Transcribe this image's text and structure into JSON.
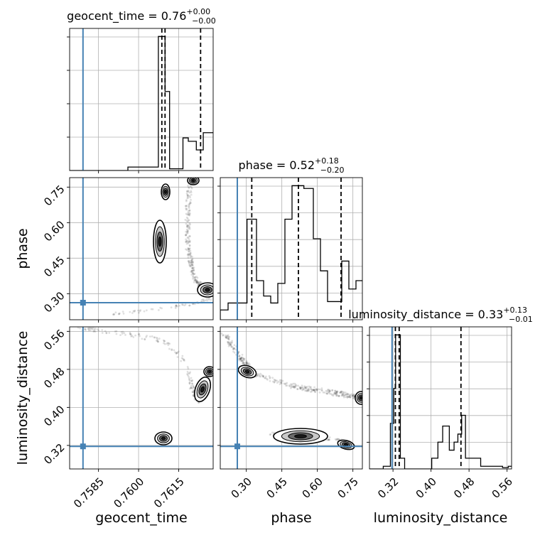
{
  "chart_data": {
    "type": "corner",
    "parameters": [
      "geocent_time",
      "phase",
      "luminosity_distance"
    ],
    "axis_labels": [
      "geocent_time",
      "phase",
      "luminosity_distance"
    ],
    "titles": [
      {
        "param": "geocent_time",
        "prefix": "geocent_time = 0.76",
        "sup": "+0.00",
        "sub": "−0.00"
      },
      {
        "param": "phase",
        "prefix": "phase = 0.52",
        "sup": "+0.18",
        "sub": "−0.20"
      },
      {
        "param": "luminosity_distance",
        "prefix": "luminosity_distance = 0.33",
        "sup": "+0.13",
        "sub": "−0.01"
      }
    ],
    "ranges": {
      "geocent_time": [
        0.75742,
        0.76279
      ],
      "phase": [
        0.19,
        0.79
      ],
      "luminosity_distance": [
        0.2705,
        0.5695
      ]
    },
    "ticks": {
      "geocent_time": [
        "0.7585",
        "0.7600",
        "0.7615"
      ],
      "phase": [
        "0.30",
        "0.45",
        "0.60",
        "0.75"
      ],
      "luminosity_distance": [
        "0.32",
        "0.40",
        "0.48",
        "0.56"
      ]
    },
    "truths": {
      "geocent_time": 0.75792,
      "phase": 0.262,
      "luminosity_distance": 0.318
    },
    "quantiles": {
      "geocent_time": [
        0.76087,
        0.76099,
        0.76232
      ],
      "phase": [
        0.323,
        0.52,
        0.7
      ],
      "luminosity_distance": [
        0.325,
        0.333,
        0.463
      ]
    },
    "histograms": {
      "geocent_time": {
        "edges": [
          0.7596,
          0.76074,
          0.76099,
          0.76116,
          0.76166,
          0.76186,
          0.76216,
          0.76242,
          0.76279
        ],
        "counts": [
          0.1,
          3.9,
          2.3,
          0.05,
          0.95,
          0.85,
          0.6,
          1.1
        ]
      },
      "phase": {
        "edges": [
          0.19,
          0.223,
          0.263,
          0.303,
          0.323,
          0.343,
          0.373,
          0.403,
          0.433,
          0.463,
          0.493,
          0.543,
          0.583,
          0.613,
          0.643,
          0.673,
          0.703,
          0.733,
          0.763,
          0.79
        ],
        "counts": [
          0.35,
          0.6,
          0.6,
          3.6,
          3.6,
          1.4,
          0.85,
          0.6,
          1.3,
          3.6,
          4.8,
          4.7,
          2.9,
          1.75,
          0.65,
          0.65,
          2.1,
          1.1,
          1.4
        ]
      },
      "luminosity_distance": {
        "edges": [
          0.2705,
          0.2995,
          0.3145,
          0.3215,
          0.3255,
          0.3355,
          0.3445,
          0.4015,
          0.4145,
          0.4245,
          0.4385,
          0.4485,
          0.4565,
          0.4645,
          0.4725,
          0.5045,
          0.5505,
          0.5625,
          0.5695
        ],
        "counts": [
          0.0,
          0.1,
          1.7,
          3.0,
          5.0,
          0.4,
          0.0,
          0.4,
          1.0,
          1.6,
          0.7,
          1.0,
          1.3,
          2.0,
          0.4,
          0.1,
          0.05,
          0.1
        ]
      }
    },
    "grid": true,
    "truth_color": "#4682b4"
  }
}
